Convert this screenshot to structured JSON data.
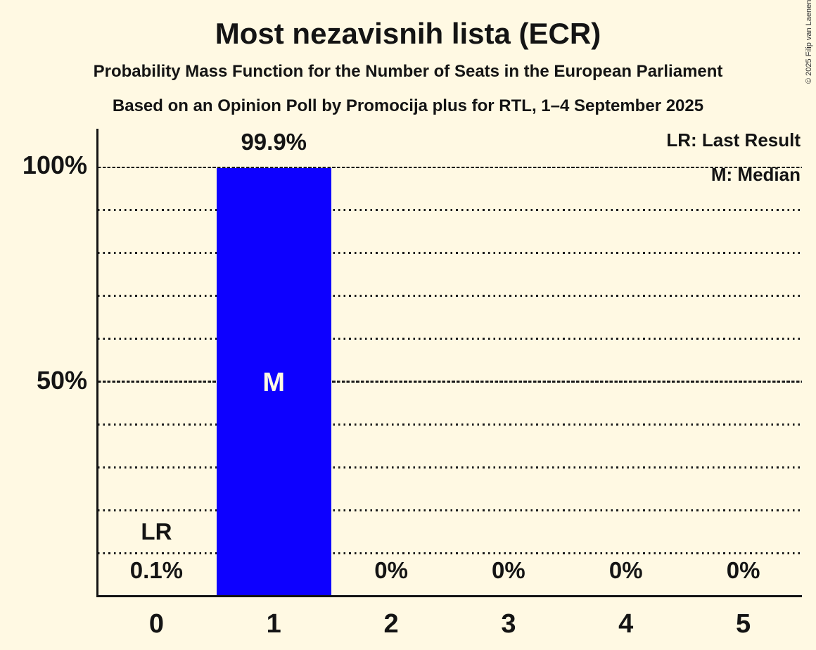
{
  "title": "Most nezavisnih lista (ECR)",
  "subtitle": "Probability Mass Function for the Number of Seats in the European Parliament",
  "source_line": "Based on an Opinion Poll by Promocija plus for RTL, 1–4 September 2025",
  "copyright_notice": "© 2025 Filip van Laenen",
  "legend": {
    "last_result": "LR: Last Result",
    "median": "M: Median"
  },
  "colors": {
    "background": "#fff9e3",
    "bar_fill": "#0d00ff",
    "text": "#141414"
  },
  "chart_data": {
    "type": "bar",
    "title": "Most nezavisnih lista (ECR)",
    "categories": [
      "0",
      "1",
      "2",
      "3",
      "4",
      "5"
    ],
    "values": [
      0.1,
      99.9,
      0,
      0,
      0,
      0
    ],
    "value_labels": [
      "0.1%",
      "99.9%",
      "0%",
      "0%",
      "0%",
      "0%"
    ],
    "ylim": [
      0,
      100
    ],
    "ytick_labels": [
      "100%",
      "50%"
    ],
    "ytick_positions": [
      100,
      50
    ],
    "gridline_interval_pct": 10,
    "grid_style": "dotted horizontal lines, denser dashes at 50% and 100%",
    "legend_position": "top-right",
    "annotations": [
      {
        "category": "0",
        "text": "LR",
        "meaning": "Last Result"
      },
      {
        "category": "1",
        "text": "M",
        "meaning": "Median"
      }
    ]
  }
}
